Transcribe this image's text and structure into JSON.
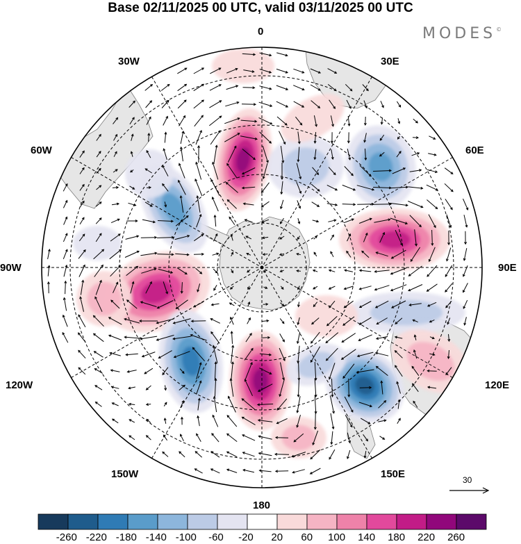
{
  "title": "Base 02/11/2025 00 UTC, valid 03/11/2025 00 UTC",
  "brand": "MODES",
  "brand_mark": "©",
  "longitude_labels": {
    "lon_0": "0",
    "lon_30e": "30E",
    "lon_60e": "60E",
    "lon_90e": "90E",
    "lon_120e": "120E",
    "lon_150e": "150E",
    "lon_180": "180",
    "lon_150w": "150W",
    "lon_120w": "120W",
    "lon_90w": "90W",
    "lon_60w": "60W",
    "lon_30w": "30W"
  },
  "reference_vector": {
    "value": "30"
  },
  "colorbar": {
    "tick_labels": [
      "-260",
      "-220",
      "-180",
      "-140",
      "-100",
      "-60",
      "-20",
      "20",
      "60",
      "100",
      "140",
      "180",
      "220",
      "260"
    ],
    "colors": [
      "#173a5c",
      "#1f5c8c",
      "#2f7bb5",
      "#5a9cca",
      "#8db6dc",
      "#bccbe6",
      "#e4e4f1",
      "#ffffff",
      "#f9dada",
      "#f6b4c4",
      "#ee82a9",
      "#e2499c",
      "#c21c87",
      "#91077b",
      "#5c0a6a"
    ]
  },
  "palette": {
    "land": "#e6e6e6",
    "coast": "#7d7d7d",
    "grid": "#000000",
    "frame": "#000000"
  }
}
